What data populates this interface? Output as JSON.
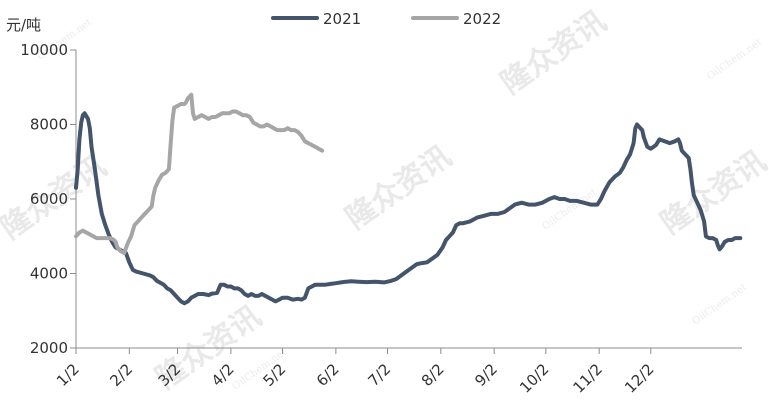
{
  "chart_data": {
    "type": "line",
    "unit_label": "元/吨",
    "x_tick_labels": [
      "1/2",
      "2/2",
      "3/2",
      "4/2",
      "5/2",
      "6/2",
      "7/2",
      "8/2",
      "9/2",
      "10/2",
      "11/2",
      "12/2"
    ],
    "y_ticks": [
      2000,
      4000,
      6000,
      8000,
      10000
    ],
    "ylim": [
      2000,
      10000
    ],
    "legend_position": "top",
    "grid": false,
    "x_unit": "day of year (1 = Jan 1)",
    "series": [
      {
        "name": "2021",
        "color": "#44546a",
        "points": [
          [
            1,
            6300
          ],
          [
            2,
            6800
          ],
          [
            3,
            7600
          ],
          [
            4,
            8050
          ],
          [
            5,
            8250
          ],
          [
            6,
            8300
          ],
          [
            8,
            8150
          ],
          [
            9,
            7900
          ],
          [
            10,
            7400
          ],
          [
            12,
            6800
          ],
          [
            14,
            6100
          ],
          [
            16,
            5600
          ],
          [
            18,
            5300
          ],
          [
            20,
            5050
          ],
          [
            22,
            4850
          ],
          [
            24,
            4700
          ],
          [
            26,
            4650
          ],
          [
            28,
            4600
          ],
          [
            30,
            4550
          ],
          [
            32,
            4300
          ],
          [
            34,
            4100
          ],
          [
            36,
            4050
          ],
          [
            40,
            4000
          ],
          [
            44,
            3950
          ],
          [
            46,
            3900
          ],
          [
            48,
            3800
          ],
          [
            50,
            3750
          ],
          [
            52,
            3700
          ],
          [
            54,
            3600
          ],
          [
            56,
            3550
          ],
          [
            58,
            3450
          ],
          [
            60,
            3350
          ],
          [
            62,
            3250
          ],
          [
            64,
            3200
          ],
          [
            66,
            3250
          ],
          [
            68,
            3350
          ],
          [
            70,
            3400
          ],
          [
            72,
            3450
          ],
          [
            75,
            3450
          ],
          [
            78,
            3420
          ],
          [
            80,
            3460
          ],
          [
            83,
            3480
          ],
          [
            85,
            3700
          ],
          [
            87,
            3700
          ],
          [
            89,
            3650
          ],
          [
            91,
            3650
          ],
          [
            93,
            3600
          ],
          [
            95,
            3600
          ],
          [
            97,
            3550
          ],
          [
            99,
            3450
          ],
          [
            101,
            3400
          ],
          [
            103,
            3450
          ],
          [
            105,
            3400
          ],
          [
            107,
            3400
          ],
          [
            109,
            3450
          ],
          [
            111,
            3400
          ],
          [
            113,
            3350
          ],
          [
            115,
            3300
          ],
          [
            117,
            3250
          ],
          [
            119,
            3300
          ],
          [
            121,
            3350
          ],
          [
            124,
            3350
          ],
          [
            127,
            3300
          ],
          [
            130,
            3320
          ],
          [
            132,
            3300
          ],
          [
            134,
            3350
          ],
          [
            136,
            3600
          ],
          [
            138,
            3650
          ],
          [
            140,
            3700
          ],
          [
            143,
            3700
          ],
          [
            146,
            3700
          ],
          [
            149,
            3720
          ],
          [
            152,
            3740
          ],
          [
            155,
            3760
          ],
          [
            158,
            3780
          ],
          [
            161,
            3790
          ],
          [
            165,
            3780
          ],
          [
            170,
            3770
          ],
          [
            175,
            3780
          ],
          [
            180,
            3760
          ],
          [
            184,
            3800
          ],
          [
            187,
            3850
          ],
          [
            190,
            3950
          ],
          [
            193,
            4050
          ],
          [
            196,
            4150
          ],
          [
            199,
            4250
          ],
          [
            202,
            4280
          ],
          [
            205,
            4300
          ],
          [
            208,
            4400
          ],
          [
            211,
            4500
          ],
          [
            214,
            4700
          ],
          [
            216,
            4900
          ],
          [
            218,
            5000
          ],
          [
            220,
            5100
          ],
          [
            222,
            5300
          ],
          [
            224,
            5350
          ],
          [
            226,
            5350
          ],
          [
            230,
            5400
          ],
          [
            234,
            5500
          ],
          [
            238,
            5550
          ],
          [
            242,
            5600
          ],
          [
            246,
            5600
          ],
          [
            250,
            5650
          ],
          [
            253,
            5750
          ],
          [
            256,
            5850
          ],
          [
            260,
            5900
          ],
          [
            264,
            5850
          ],
          [
            268,
            5850
          ],
          [
            272,
            5900
          ],
          [
            274,
            5950
          ],
          [
            276,
            6000
          ],
          [
            279,
            6050
          ],
          [
            282,
            6000
          ],
          [
            285,
            6000
          ],
          [
            288,
            5950
          ],
          [
            292,
            5950
          ],
          [
            296,
            5900
          ],
          [
            300,
            5850
          ],
          [
            304,
            5850
          ],
          [
            306,
            6000
          ],
          [
            308,
            6200
          ],
          [
            311,
            6450
          ],
          [
            314,
            6600
          ],
          [
            317,
            6700
          ],
          [
            319,
            6850
          ],
          [
            321,
            7050
          ],
          [
            323,
            7200
          ],
          [
            325,
            7500
          ],
          [
            326,
            7900
          ],
          [
            327,
            8000
          ],
          [
            328,
            7950
          ],
          [
            330,
            7850
          ],
          [
            331,
            7650
          ],
          [
            333,
            7400
          ],
          [
            335,
            7350
          ],
          [
            338,
            7450
          ],
          [
            340,
            7600
          ],
          [
            343,
            7550
          ],
          [
            346,
            7500
          ],
          [
            349,
            7550
          ],
          [
            351,
            7600
          ],
          [
            352,
            7500
          ],
          [
            353,
            7300
          ],
          [
            355,
            7200
          ],
          [
            357,
            7100
          ],
          [
            358,
            6800
          ],
          [
            359,
            6400
          ],
          [
            360,
            6100
          ],
          [
            362,
            5900
          ],
          [
            364,
            5700
          ],
          [
            366,
            5400
          ],
          [
            367,
            5000
          ],
          [
            369,
            4950
          ],
          [
            371,
            4950
          ],
          [
            373,
            4900
          ],
          [
            374,
            4750
          ],
          [
            375,
            4650
          ],
          [
            376,
            4700
          ],
          [
            378,
            4850
          ],
          [
            380,
            4900
          ],
          [
            382,
            4900
          ],
          [
            384,
            4950
          ],
          [
            387,
            4950
          ]
        ]
      },
      {
        "name": "2022",
        "color": "#a6a6a6",
        "points": [
          [
            1,
            5000
          ],
          [
            3,
            5100
          ],
          [
            5,
            5150
          ],
          [
            7,
            5100
          ],
          [
            9,
            5050
          ],
          [
            11,
            5000
          ],
          [
            13,
            4950
          ],
          [
            17,
            4950
          ],
          [
            21,
            4950
          ],
          [
            23,
            4900
          ],
          [
            24,
            4850
          ],
          [
            25,
            4700
          ],
          [
            27,
            4600
          ],
          [
            29,
            4550
          ],
          [
            31,
            4800
          ],
          [
            33,
            5000
          ],
          [
            35,
            5300
          ],
          [
            37,
            5400
          ],
          [
            39,
            5500
          ],
          [
            41,
            5600
          ],
          [
            43,
            5700
          ],
          [
            45,
            5800
          ],
          [
            46,
            6100
          ],
          [
            47,
            6300
          ],
          [
            49,
            6500
          ],
          [
            51,
            6650
          ],
          [
            53,
            6700
          ],
          [
            55,
            6800
          ],
          [
            56,
            7500
          ],
          [
            57,
            8100
          ],
          [
            58,
            8450
          ],
          [
            60,
            8500
          ],
          [
            62,
            8550
          ],
          [
            64,
            8550
          ],
          [
            65,
            8600
          ],
          [
            66,
            8700
          ],
          [
            67,
            8750
          ],
          [
            68,
            8800
          ],
          [
            69,
            8300
          ],
          [
            70,
            8150
          ],
          [
            72,
            8200
          ],
          [
            74,
            8250
          ],
          [
            76,
            8200
          ],
          [
            78,
            8150
          ],
          [
            80,
            8200
          ],
          [
            82,
            8200
          ],
          [
            84,
            8250
          ],
          [
            86,
            8300
          ],
          [
            88,
            8300
          ],
          [
            90,
            8300
          ],
          [
            92,
            8350
          ],
          [
            94,
            8350
          ],
          [
            96,
            8300
          ],
          [
            98,
            8250
          ],
          [
            100,
            8250
          ],
          [
            102,
            8200
          ],
          [
            104,
            8050
          ],
          [
            106,
            8000
          ],
          [
            108,
            7950
          ],
          [
            110,
            7950
          ],
          [
            112,
            8000
          ],
          [
            114,
            7950
          ],
          [
            116,
            7900
          ],
          [
            118,
            7850
          ],
          [
            120,
            7850
          ],
          [
            122,
            7850
          ],
          [
            124,
            7900
          ],
          [
            126,
            7850
          ],
          [
            128,
            7850
          ],
          [
            130,
            7800
          ],
          [
            132,
            7700
          ],
          [
            134,
            7550
          ],
          [
            136,
            7500
          ],
          [
            138,
            7450
          ],
          [
            140,
            7400
          ],
          [
            142,
            7350
          ],
          [
            144,
            7300
          ]
        ]
      }
    ]
  },
  "watermark": {
    "brand": "隆众资讯",
    "site": "OilChem.net"
  }
}
